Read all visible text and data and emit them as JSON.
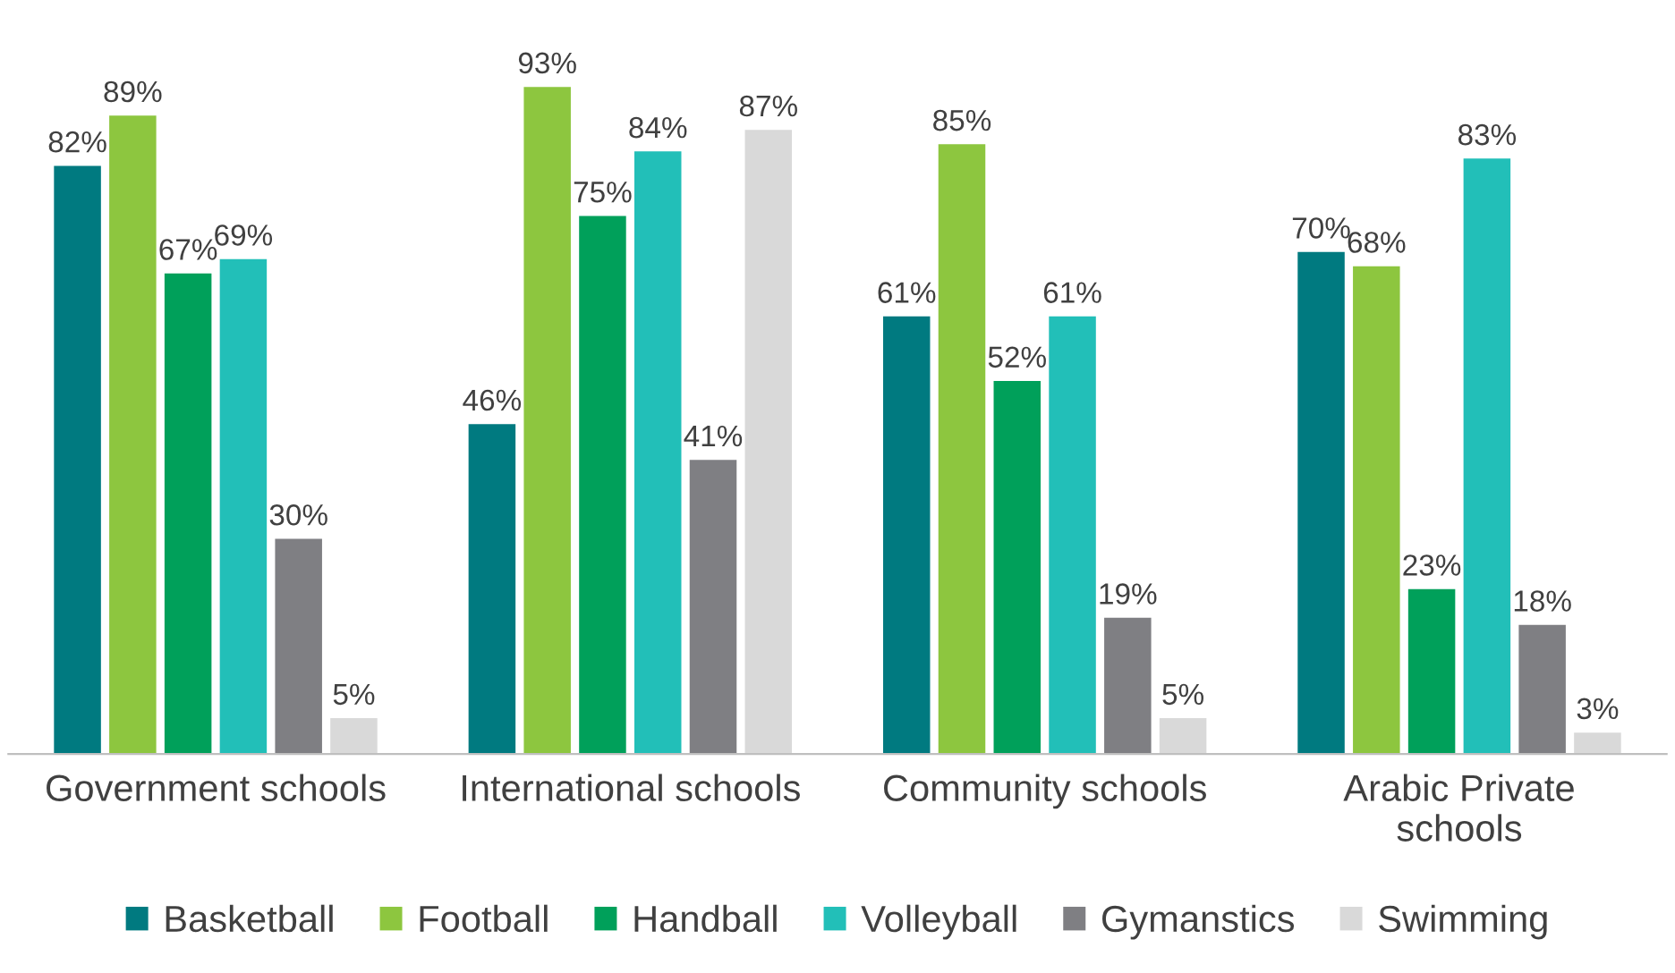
{
  "chart_data": {
    "type": "bar",
    "categories": [
      "Government schools",
      "International schools",
      "Community schools",
      "Arabic Private\nschools"
    ],
    "series": [
      {
        "name": "Basketball",
        "color": "#007a80",
        "values": [
          82,
          46,
          61,
          70
        ],
        "value_labels": [
          "82%",
          "46%",
          "61%",
          "70%"
        ]
      },
      {
        "name": "Football",
        "color": "#8dc63f",
        "values": [
          89,
          93,
          85,
          68
        ],
        "value_labels": [
          "89%",
          "93%",
          "85%",
          "68%"
        ]
      },
      {
        "name": "Handball",
        "color": "#00a05a",
        "values": [
          67,
          75,
          52,
          23
        ],
        "value_labels": [
          "67%",
          "75%",
          "52%",
          "23%"
        ]
      },
      {
        "name": "Volleyball",
        "color": "#22bfb8",
        "values": [
          69,
          84,
          61,
          83
        ],
        "value_labels": [
          "69%",
          "84%",
          "61%",
          "83%"
        ]
      },
      {
        "name": "Gymanstics",
        "color": "#7f7f83",
        "values": [
          30,
          41,
          19,
          18
        ],
        "value_labels": [
          "30%",
          "41%",
          "19%",
          "18%"
        ]
      },
      {
        "name": "Swimming",
        "color": "#d9d9d9",
        "values": [
          5,
          87,
          5,
          3
        ],
        "value_labels": [
          "5%",
          "87%",
          "5%",
          "3%"
        ]
      }
    ],
    "legend": "bottom",
    "grid": false
  }
}
